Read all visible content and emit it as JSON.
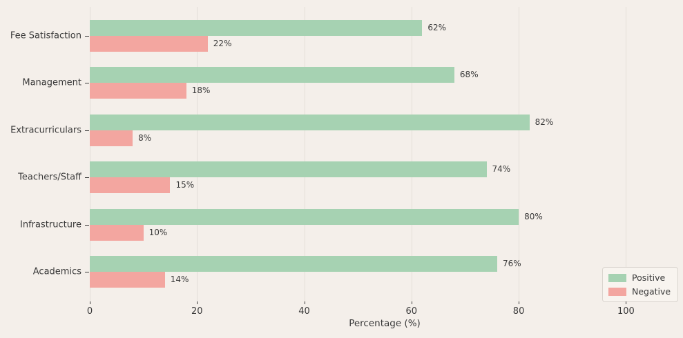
{
  "chart_data": {
    "type": "bar",
    "orientation": "horizontal",
    "title": "",
    "categories": [
      "Fee Satisfaction",
      "Management",
      "Extracurriculars",
      "Teachers/Staff",
      "Infrastructure",
      "Academics"
    ],
    "series": [
      {
        "name": "Positive",
        "color": "#a6d2b2",
        "values": [
          62,
          68,
          82,
          74,
          80,
          76
        ]
      },
      {
        "name": "Negative",
        "color": "#f3a6a0",
        "values": [
          22,
          18,
          8,
          15,
          10,
          14
        ]
      }
    ],
    "value_suffix": "%",
    "xlabel": "Percentage (%)",
    "ylabel": "",
    "x_ticks": [
      0,
      20,
      40,
      60,
      80,
      100
    ],
    "xlim": [
      0,
      110
    ],
    "grid": true,
    "legend_position": "lower right",
    "colors": {
      "background": "#f4efea",
      "grid_color": "#e3ded8",
      "tick_color": "#3a3a3a",
      "text_color": "#3a3a3a",
      "legend_background": "#f8f4ef",
      "legend_border": "#d9d4ce"
    }
  }
}
